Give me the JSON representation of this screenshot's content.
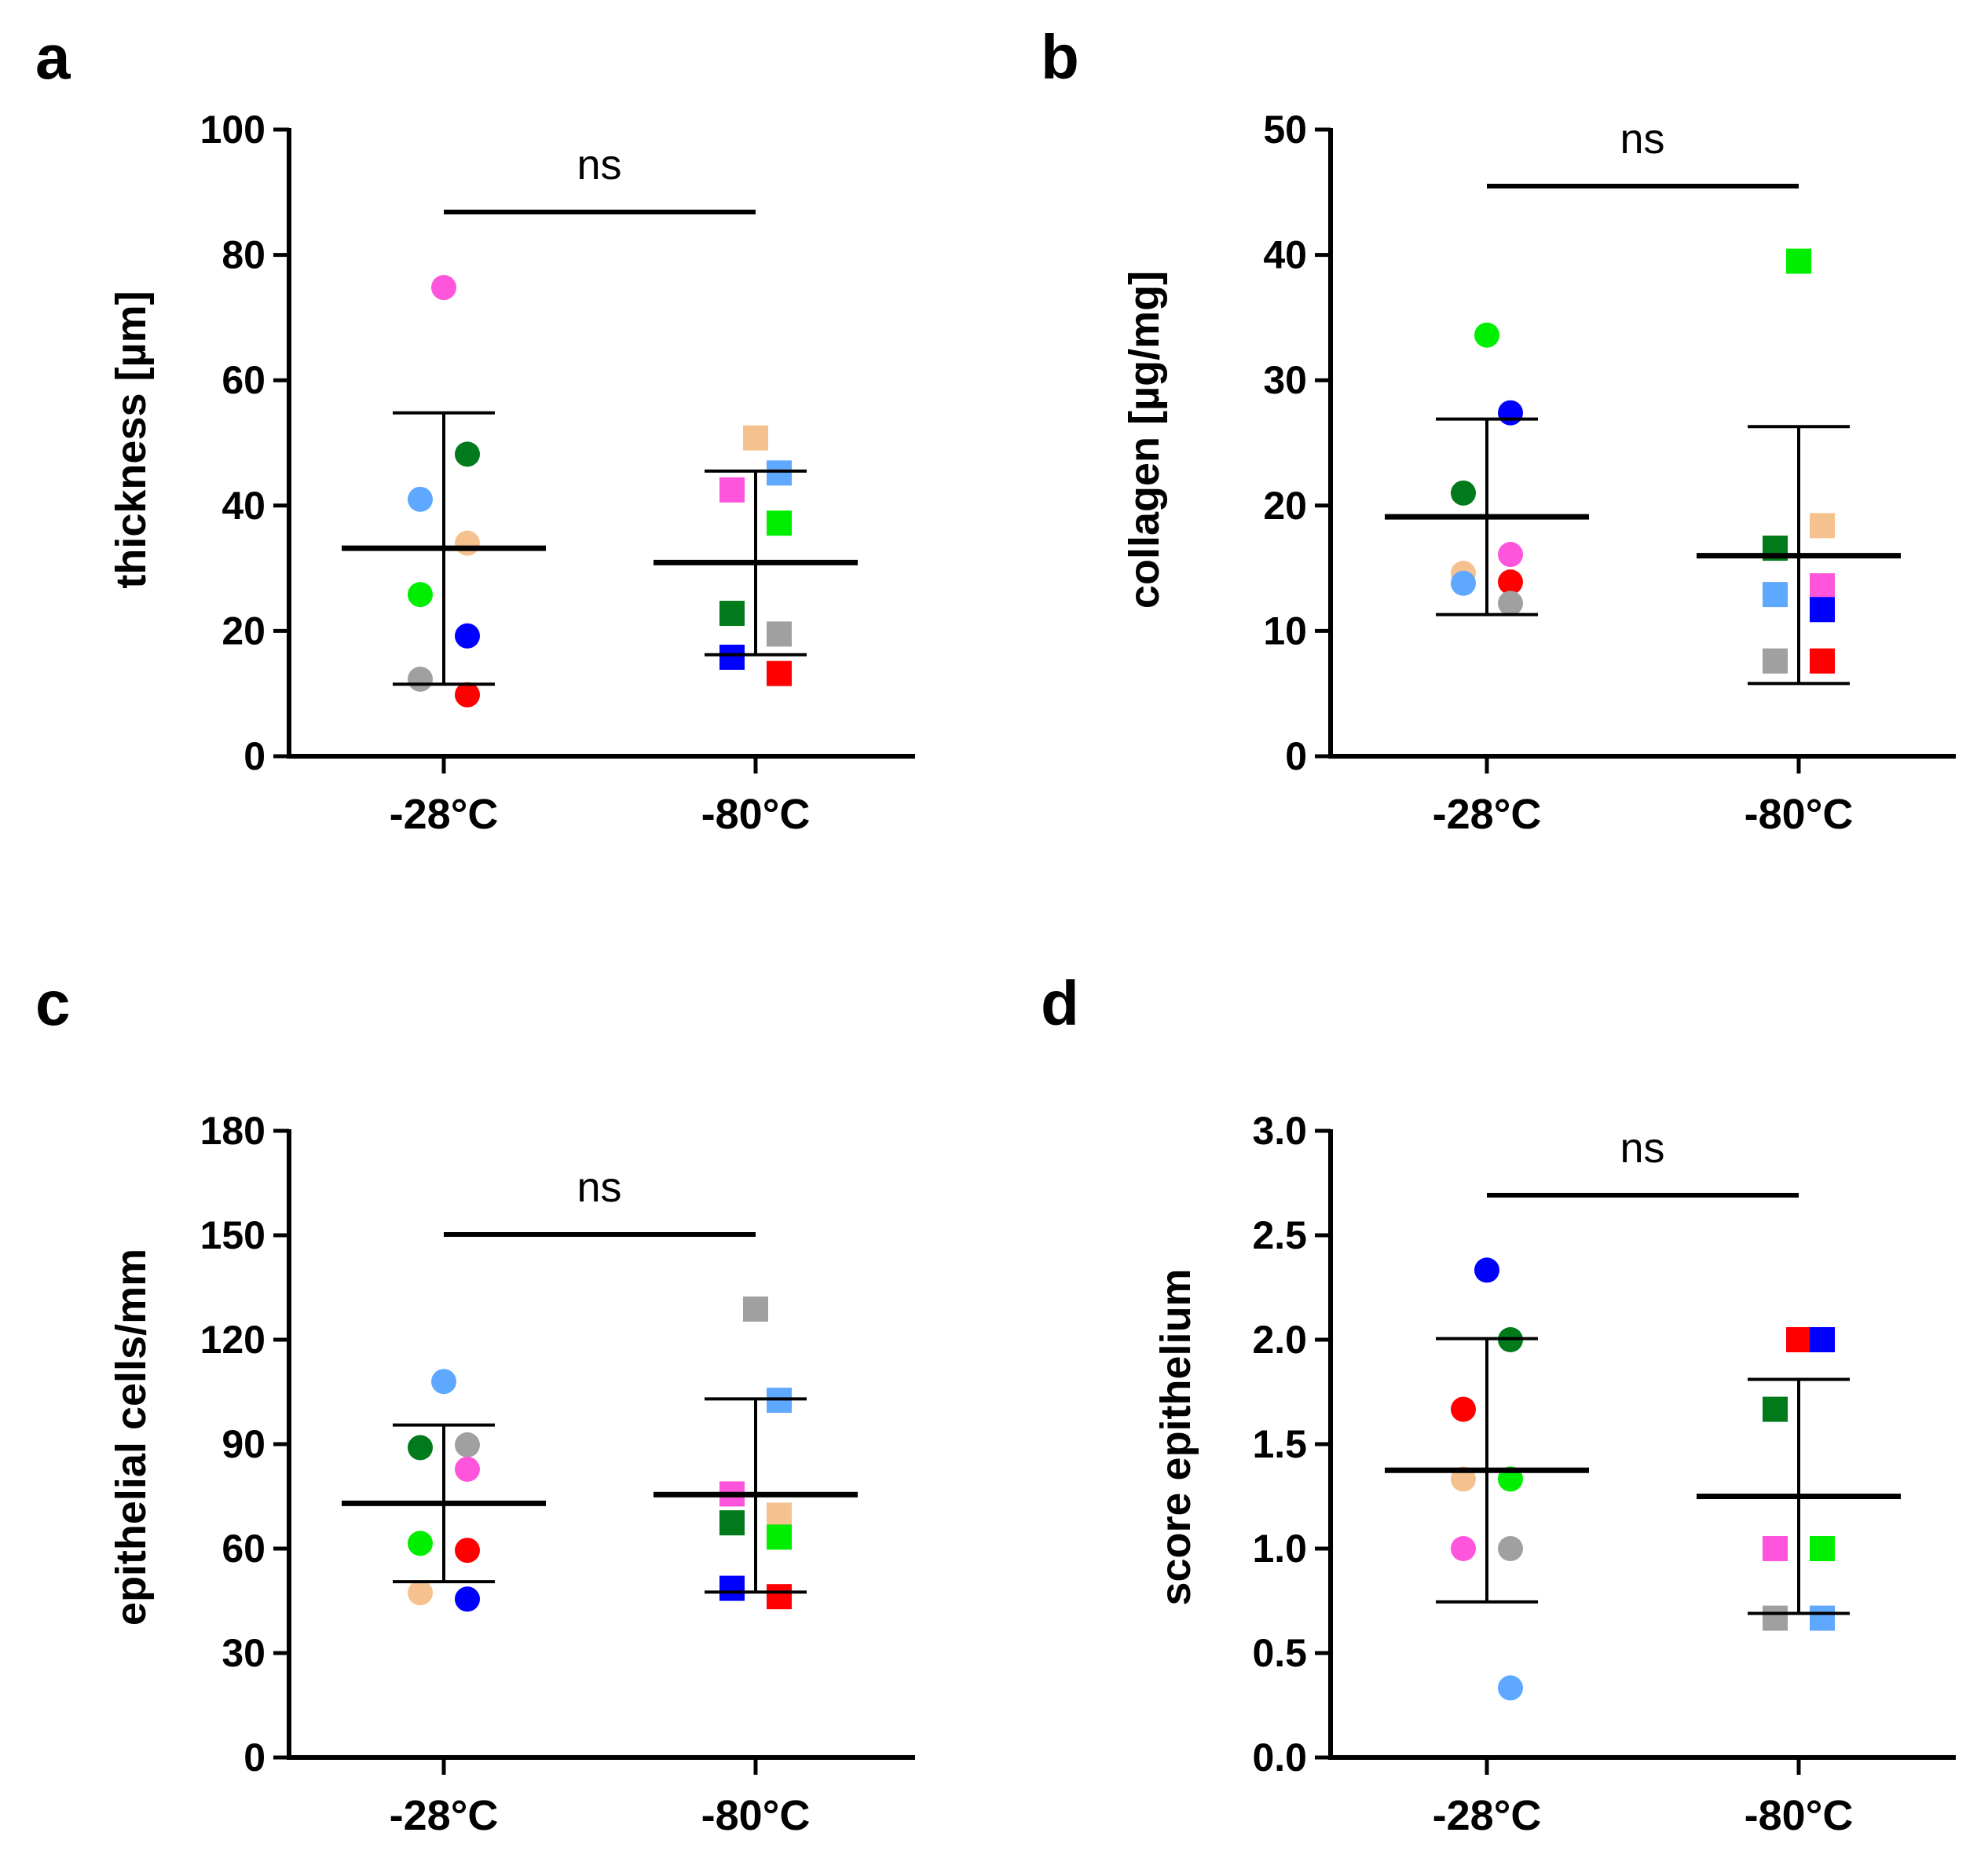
{
  "colors": {
    "red": "#ff0000",
    "blue": "#0000ff",
    "green_light": "#00ee00",
    "green_dark": "#007a1a",
    "peach": "#f5c28f",
    "sky": "#5fa8ff",
    "magenta": "#ff55dd",
    "grey": "#a0a0a0"
  },
  "chart_data": [
    {
      "panel": "a",
      "type": "scatter",
      "ylabel": "thickness [µm]",
      "ylim": [
        0,
        100
      ],
      "yticks": [
        0,
        20,
        40,
        60,
        80,
        100
      ],
      "ytick_labels": [
        "0",
        "20",
        "40",
        "60",
        "80",
        "100"
      ],
      "categories": [
        "-28°C",
        "-80°C"
      ],
      "significance": "ns",
      "groups": [
        {
          "category": "-28°C",
          "marker": "circle",
          "mean": 33.2,
          "sd_low": 11.5,
          "sd_high": 54.8,
          "points": [
            {
              "color": "magenta",
              "y": 74.8
            },
            {
              "color": "green_dark",
              "y": 48.2
            },
            {
              "color": "sky",
              "y": 41.0
            },
            {
              "color": "peach",
              "y": 34.0
            },
            {
              "color": "green_light",
              "y": 25.8
            },
            {
              "color": "blue",
              "y": 19.2
            },
            {
              "color": "grey",
              "y": 12.3
            },
            {
              "color": "red",
              "y": 9.8
            }
          ]
        },
        {
          "category": "-80°C",
          "marker": "square",
          "mean": 30.9,
          "sd_low": 16.2,
          "sd_high": 45.5,
          "points": [
            {
              "color": "peach",
              "y": 50.8
            },
            {
              "color": "sky",
              "y": 45.2
            },
            {
              "color": "magenta",
              "y": 42.5
            },
            {
              "color": "green_light",
              "y": 37.2
            },
            {
              "color": "green_dark",
              "y": 22.8
            },
            {
              "color": "grey",
              "y": 19.5
            },
            {
              "color": "blue",
              "y": 15.8
            },
            {
              "color": "red",
              "y": 13.2
            }
          ]
        }
      ]
    },
    {
      "panel": "b",
      "type": "scatter",
      "ylabel": "collagen [µg/mg]",
      "ylim": [
        0,
        50
      ],
      "yticks": [
        0,
        10,
        20,
        30,
        40,
        50
      ],
      "ytick_labels": [
        "0",
        "10",
        "20",
        "30",
        "40",
        "50"
      ],
      "categories": [
        "-28°C",
        "-80°C"
      ],
      "significance": "ns",
      "groups": [
        {
          "category": "-28°C",
          "marker": "circle",
          "mean": 19.1,
          "sd_low": 11.3,
          "sd_high": 26.9,
          "points": [
            {
              "color": "green_light",
              "y": 33.6
            },
            {
              "color": "blue",
              "y": 27.4
            },
            {
              "color": "green_dark",
              "y": 21.0
            },
            {
              "color": "magenta",
              "y": 16.1
            },
            {
              "color": "peach",
              "y": 14.6
            },
            {
              "color": "red",
              "y": 13.9
            },
            {
              "color": "sky",
              "y": 13.8
            },
            {
              "color": "grey",
              "y": 12.2
            }
          ]
        },
        {
          "category": "-80°C",
          "marker": "square",
          "mean": 16.0,
          "sd_low": 5.8,
          "sd_high": 26.3,
          "points": [
            {
              "color": "green_light",
              "y": 39.5
            },
            {
              "color": "peach",
              "y": 18.4
            },
            {
              "color": "green_dark",
              "y": 16.6
            },
            {
              "color": "magenta",
              "y": 13.6
            },
            {
              "color": "sky",
              "y": 12.9
            },
            {
              "color": "blue",
              "y": 11.7
            },
            {
              "color": "grey",
              "y": 7.6
            },
            {
              "color": "red",
              "y": 7.6
            }
          ]
        }
      ]
    },
    {
      "panel": "c",
      "type": "scatter",
      "ylabel": "epithelial cells/mm",
      "ylim": [
        0,
        180
      ],
      "yticks": [
        0,
        30,
        60,
        90,
        120,
        150,
        180
      ],
      "ytick_labels": [
        "0",
        "30",
        "60",
        "90",
        "120",
        "150",
        "180"
      ],
      "categories": [
        "-28°C",
        "-80°C"
      ],
      "significance": "ns",
      "groups": [
        {
          "category": "-28°C",
          "marker": "circle",
          "mean": 73.0,
          "sd_low": 50.5,
          "sd_high": 95.5,
          "points": [
            {
              "color": "sky",
              "y": 108.0
            },
            {
              "color": "grey",
              "y": 89.8
            },
            {
              "color": "green_dark",
              "y": 89.0
            },
            {
              "color": "magenta",
              "y": 82.8
            },
            {
              "color": "green_light",
              "y": 61.5
            },
            {
              "color": "red",
              "y": 59.5
            },
            {
              "color": "peach",
              "y": 47.3
            },
            {
              "color": "blue",
              "y": 45.5
            }
          ]
        },
        {
          "category": "-80°C",
          "marker": "square",
          "mean": 75.5,
          "sd_low": 47.5,
          "sd_high": 103.0,
          "points": [
            {
              "color": "grey",
              "y": 128.8
            },
            {
              "color": "sky",
              "y": 102.6
            },
            {
              "color": "magenta",
              "y": 75.7
            },
            {
              "color": "peach",
              "y": 69.6
            },
            {
              "color": "green_dark",
              "y": 67.4
            },
            {
              "color": "green_light",
              "y": 63.3
            },
            {
              "color": "blue",
              "y": 48.6
            },
            {
              "color": "red",
              "y": 46.2
            }
          ]
        }
      ]
    },
    {
      "panel": "d",
      "type": "scatter",
      "ylabel": "score epithelium",
      "ylim": [
        0,
        3.0
      ],
      "yticks": [
        0,
        0.5,
        1.0,
        1.5,
        2.0,
        2.5,
        3.0
      ],
      "ytick_labels": [
        "0.0",
        "0.5",
        "1.0",
        "1.5",
        "2.0",
        "2.5",
        "3.0"
      ],
      "categories": [
        "-28°C",
        "-80°C"
      ],
      "significance": "ns",
      "groups": [
        {
          "category": "-28°C",
          "marker": "circle",
          "mean": 1.375,
          "sd_low": 0.745,
          "sd_high": 2.005,
          "points": [
            {
              "color": "blue",
              "y": 2.333
            },
            {
              "color": "green_dark",
              "y": 2.0
            },
            {
              "color": "red",
              "y": 1.667
            },
            {
              "color": "green_light",
              "y": 1.333
            },
            {
              "color": "peach",
              "y": 1.333
            },
            {
              "color": "grey",
              "y": 1.0
            },
            {
              "color": "magenta",
              "y": 1.0
            },
            {
              "color": "sky",
              "y": 0.333
            }
          ]
        },
        {
          "category": "-80°C",
          "marker": "square",
          "mean": 1.25,
          "sd_low": 0.69,
          "sd_high": 1.81,
          "points": [
            {
              "color": "red",
              "y": 2.0
            },
            {
              "color": "blue",
              "y": 2.0
            },
            {
              "color": "green_dark",
              "y": 1.667
            },
            {
              "color": "peach",
              "y": 1.0
            },
            {
              "color": "magenta",
              "y": 1.0
            },
            {
              "color": "green_light",
              "y": 1.0
            },
            {
              "color": "grey",
              "y": 0.667
            },
            {
              "color": "sky",
              "y": 0.667
            }
          ]
        }
      ]
    }
  ]
}
